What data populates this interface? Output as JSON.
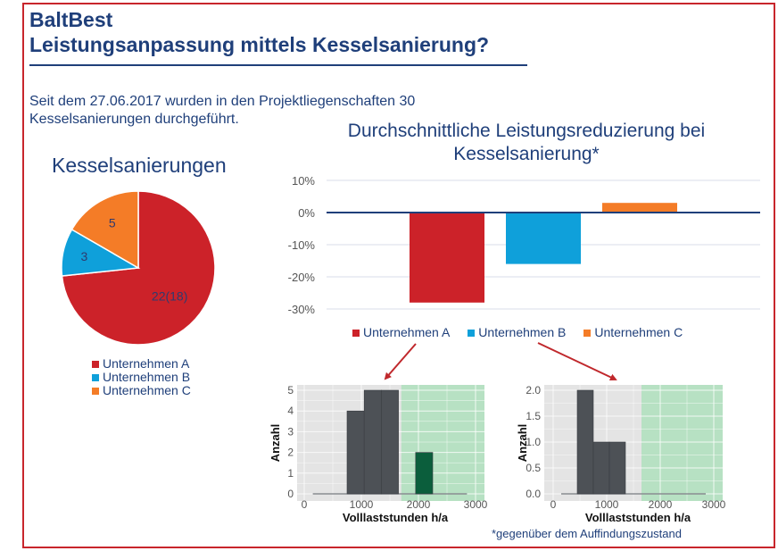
{
  "header": {
    "title_line1": "BaltBest",
    "title_line2": "Leistungsanpassung mittels Kesselsanierung?"
  },
  "intro_text": "Seit dem 27.06.2017 wurden in den Projektliegenschaften 30 Kesselsanierungen durchgeführt.",
  "footnote": "*gegenüber dem Auffindungszustand",
  "colors": {
    "brand_blue": "#1f3f7a",
    "frame_red": "#c8262c",
    "company_a": "#cc2229",
    "company_b": "#0fa0da",
    "company_c": "#f47c27",
    "hist_bar": "#4d5156",
    "hist_bar_highlight": "#0b5e3c",
    "hist_panel_bg": "#e4e4e4",
    "hist_green_zone": "#b7e1c3",
    "arrow": "#c0282c"
  },
  "chart_data": [
    {
      "type": "pie",
      "title": "Kesselsanierungen",
      "categories": [
        "Unternehmen A",
        "Unternehmen B",
        "Unternehmen C"
      ],
      "values": [
        22,
        3,
        5
      ],
      "labels": [
        "22(18)",
        "3",
        "5"
      ],
      "legend": "bottom"
    },
    {
      "type": "bar",
      "title": "Durchschnittliche Leistungsreduzierung bei Kesselsanierung*",
      "categories": [
        "Unternehmen A",
        "Unternehmen B",
        "Unternehmen C"
      ],
      "values": [
        -28,
        -16,
        3
      ],
      "unit": "%",
      "ylim": [
        -30,
        10
      ],
      "yticks": [
        10,
        0,
        -10,
        -20,
        -30
      ],
      "ytick_labels": [
        "10%",
        "0%",
        "-10%",
        "-20%",
        "-30%"
      ],
      "grid": true,
      "legend": "bottom"
    },
    {
      "type": "bar",
      "subtype": "histogram",
      "refers_to": "Unternehmen A",
      "xlabel": "Volllaststunden h/a",
      "ylabel": "Anzahl",
      "xlim": [
        -100,
        3100
      ],
      "ylim": [
        0,
        5.2
      ],
      "xticks": [
        0,
        1000,
        2000,
        3000
      ],
      "yticks": [
        0,
        1,
        2,
        3,
        4,
        5
      ],
      "ytick_labels": [
        "0",
        "1",
        "2",
        "3",
        "4",
        "5"
      ],
      "bins": [
        {
          "from": 750,
          "to": 1050,
          "count": 4,
          "highlight": false
        },
        {
          "from": 1050,
          "to": 1350,
          "count": 5,
          "highlight": false
        },
        {
          "from": 1350,
          "to": 1650,
          "count": 5,
          "highlight": false
        },
        {
          "from": 1950,
          "to": 2250,
          "count": 2,
          "highlight": true
        }
      ],
      "green_zone_from": 1700,
      "baseline_range": [
        150,
        2850
      ]
    },
    {
      "type": "bar",
      "subtype": "histogram",
      "refers_to": "Unternehmen B",
      "xlabel": "Volllaststunden h/a",
      "ylabel": "Anzahl",
      "xlim": [
        -100,
        3100
      ],
      "ylim": [
        0,
        2.08
      ],
      "xticks": [
        0,
        1000,
        2000,
        3000
      ],
      "yticks": [
        0,
        0.5,
        1.0,
        1.5,
        2.0
      ],
      "ytick_labels": [
        "0.0",
        "0.5",
        "1.0",
        "1.5",
        "2.0"
      ],
      "bins": [
        {
          "from": 450,
          "to": 750,
          "count": 2,
          "highlight": false
        },
        {
          "from": 750,
          "to": 1050,
          "count": 1,
          "highlight": false
        },
        {
          "from": 1050,
          "to": 1350,
          "count": 1,
          "highlight": false
        }
      ],
      "green_zone_from": 1650,
      "baseline_range": [
        150,
        2850
      ]
    }
  ]
}
